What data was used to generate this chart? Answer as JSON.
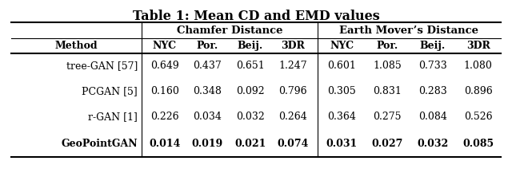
{
  "title": "Table 1: Mean CD and EMD values",
  "title_fontsize": 11.5,
  "col_group1_label": "Chamfer Distance",
  "col_group2_label": "Earth Mover’s Distance",
  "sub_cols": [
    "NYC",
    "Por.",
    "Beij.",
    "3DR"
  ],
  "row_labels": [
    "tree-GAN [57]",
    "PCGAN [5]",
    "r-GAN [1]",
    "GeoPointGAN"
  ],
  "cd_values": [
    [
      "0.649",
      "0.437",
      "0.651",
      "1.247"
    ],
    [
      "0.160",
      "0.348",
      "0.092",
      "0.796"
    ],
    [
      "0.226",
      "0.034",
      "0.032",
      "0.264"
    ],
    [
      "0.014",
      "0.019",
      "0.021",
      "0.074"
    ]
  ],
  "emd_values": [
    [
      "0.601",
      "1.085",
      "0.733",
      "1.080"
    ],
    [
      "0.305",
      "0.831",
      "0.283",
      "0.896"
    ],
    [
      "0.364",
      "0.275",
      "0.084",
      "0.526"
    ],
    [
      "0.031",
      "0.027",
      "0.032",
      "0.085"
    ]
  ],
  "bold_row": 3,
  "method_col_header": "Method",
  "bg_color": "#ffffff",
  "text_color": "#000000",
  "font_family": "DejaVu Serif"
}
